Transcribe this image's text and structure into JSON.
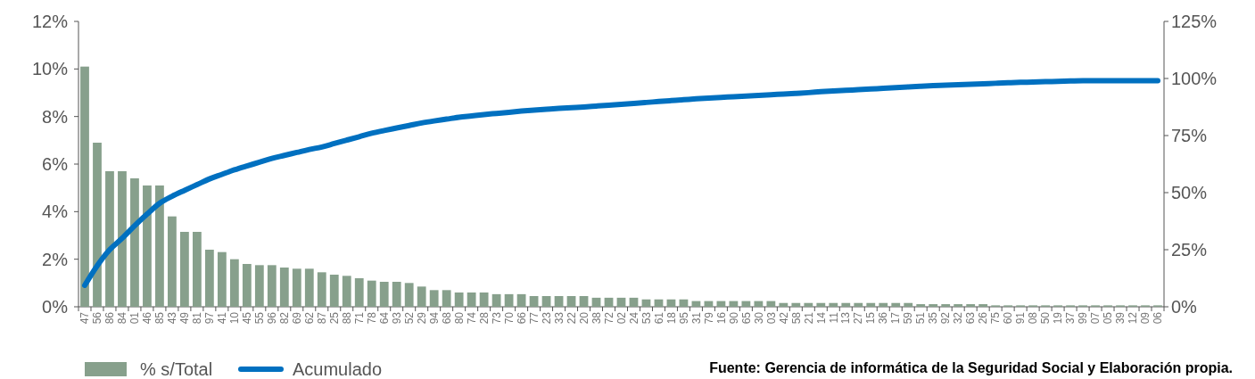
{
  "chart_data": {
    "type": "bar",
    "categories": [
      "47",
      "56",
      "86",
      "84",
      "01",
      "46",
      "85",
      "43",
      "49",
      "81",
      "97",
      "41",
      "10",
      "45",
      "55",
      "96",
      "82",
      "69",
      "62",
      "87",
      "25",
      "88",
      "71",
      "78",
      "64",
      "93",
      "52",
      "29",
      "94",
      "68",
      "80",
      "74",
      "28",
      "73",
      "70",
      "66",
      "77",
      "23",
      "33",
      "22",
      "20",
      "38",
      "72",
      "02",
      "24",
      "53",
      "61",
      "18",
      "95",
      "31",
      "79",
      "16",
      "90",
      "65",
      "30",
      "03",
      "42",
      "58",
      "21",
      "14",
      "11",
      "13",
      "27",
      "15",
      "36",
      "17",
      "59",
      "51",
      "35",
      "92",
      "32",
      "63",
      "26",
      "75",
      "60",
      "91",
      "08",
      "50",
      "19",
      "37",
      "99",
      "07",
      "05",
      "39",
      "12",
      "09",
      "06"
    ],
    "series": [
      {
        "name": "% s/Total",
        "color": "#87a08c",
        "values": [
          10.1,
          6.9,
          5.7,
          5.7,
          5.4,
          5.1,
          5.1,
          3.8,
          3.15,
          3.15,
          2.4,
          2.3,
          2.0,
          1.8,
          1.75,
          1.75,
          1.65,
          1.6,
          1.6,
          1.45,
          1.35,
          1.3,
          1.2,
          1.1,
          1.05,
          1.05,
          1.0,
          0.85,
          0.7,
          0.7,
          0.6,
          0.6,
          0.6,
          0.53,
          0.53,
          0.53,
          0.45,
          0.45,
          0.45,
          0.45,
          0.45,
          0.38,
          0.38,
          0.38,
          0.38,
          0.31,
          0.31,
          0.31,
          0.31,
          0.24,
          0.24,
          0.24,
          0.24,
          0.24,
          0.24,
          0.24,
          0.16,
          0.16,
          0.16,
          0.16,
          0.16,
          0.16,
          0.16,
          0.16,
          0.16,
          0.16,
          0.16,
          0.11,
          0.11,
          0.11,
          0.11,
          0.11,
          0.11,
          0.06,
          0.06,
          0.06,
          0.06,
          0.06,
          0.06,
          0.06,
          0.06,
          0.06,
          0.06,
          0.06,
          0.06,
          0.06,
          0.06
        ]
      },
      {
        "name": "Acumulado",
        "type": "line",
        "axis": "y2",
        "color": "#0070c0",
        "values": [
          9.4,
          18,
          25,
          30,
          35.5,
          40.6,
          45.3,
          48.4,
          51,
          53.5,
          56,
          58,
          60,
          61.7,
          63.3,
          65,
          66.3,
          67.6,
          68.9,
          70,
          71.5,
          73,
          74.5,
          76,
          77.2,
          78.3,
          79.4,
          80.5,
          81.4,
          82.2,
          83,
          83.6,
          84.2,
          84.7,
          85.2,
          85.7,
          86.1,
          86.5,
          86.9,
          87.2,
          87.5,
          87.9,
          88.3,
          88.7,
          89.1,
          89.5,
          89.9,
          90.3,
          90.7,
          91.1,
          91.4,
          91.7,
          92,
          92.3,
          92.6,
          92.9,
          93.2,
          93.5,
          93.8,
          94.2,
          94.5,
          94.8,
          95.1,
          95.4,
          95.7,
          96,
          96.3,
          96.6,
          96.9,
          97.1,
          97.3,
          97.5,
          97.7,
          97.9,
          98.1,
          98.3,
          98.4,
          98.6,
          98.7,
          98.9,
          99,
          99,
          99,
          99,
          99,
          99,
          99
        ]
      }
    ],
    "ylim": [
      0,
      12
    ],
    "yticks": [
      {
        "value": 0,
        "label": "0%"
      },
      {
        "value": 2,
        "label": "2%"
      },
      {
        "value": 4,
        "label": "4%"
      },
      {
        "value": 6,
        "label": "6%"
      },
      {
        "value": 8,
        "label": "8%"
      },
      {
        "value": 10,
        "label": "10%"
      },
      {
        "value": 12,
        "label": "12%"
      }
    ],
    "y2lim": [
      0,
      125
    ],
    "y2ticks": [
      {
        "value": 0,
        "label": "0%"
      },
      {
        "value": 25,
        "label": "25%"
      },
      {
        "value": 50,
        "label": "50%"
      },
      {
        "value": 75,
        "label": "75%"
      },
      {
        "value": 100,
        "label": "100%"
      },
      {
        "value": 125,
        "label": "125%"
      }
    ],
    "legend": "bottom left",
    "grid": false,
    "annotations": [
      "Fuente: Gerencia de informática de la Seguridad Social y Elaboración propia."
    ]
  }
}
